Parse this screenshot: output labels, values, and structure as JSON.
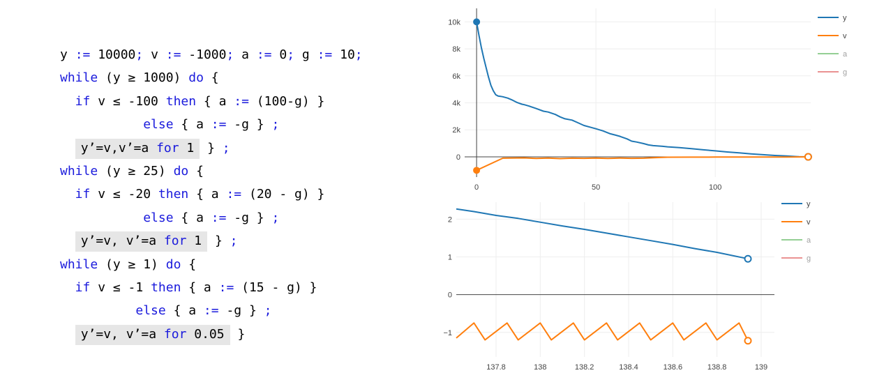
{
  "program": [
    [
      {
        "t": "y "
      },
      {
        "t": ":=",
        "k": 1
      },
      {
        "t": " 10000"
      },
      {
        "t": ";",
        "k": 1
      },
      {
        "t": " v "
      },
      {
        "t": ":=",
        "k": 1
      },
      {
        "t": " -1000"
      },
      {
        "t": ";",
        "k": 1
      },
      {
        "t": " a "
      },
      {
        "t": ":=",
        "k": 1
      },
      {
        "t": " 0"
      },
      {
        "t": ";",
        "k": 1
      },
      {
        "t": " g "
      },
      {
        "t": ":=",
        "k": 1
      },
      {
        "t": " 10"
      },
      {
        "t": ";",
        "k": 1
      }
    ],
    [
      {
        "t": "while",
        "k": 1
      },
      {
        "t": " (y ≥ 1000) "
      },
      {
        "t": "do",
        "k": 1
      },
      {
        "t": " {"
      }
    ],
    [
      {
        "t": "  if",
        "k": 1
      },
      {
        "t": " v ≤ -100 "
      },
      {
        "t": "then",
        "k": 1
      },
      {
        "t": " { a "
      },
      {
        "t": ":=",
        "k": 1
      },
      {
        "t": " (100-g) }"
      }
    ],
    [
      {
        "t": "           "
      },
      {
        "t": "else",
        "k": 1
      },
      {
        "t": " { a "
      },
      {
        "t": ":=",
        "k": 1
      },
      {
        "t": " -g } "
      },
      {
        "t": ";",
        "k": 1
      }
    ],
    [
      {
        "t": "  "
      },
      {
        "t": "y’=v,v’=a ",
        "h": 1
      },
      {
        "t": "for",
        "k": 1,
        "h": 1
      },
      {
        "t": " 1",
        "h": 1
      },
      {
        "t": " } "
      },
      {
        "t": ";",
        "k": 1
      }
    ],
    [
      {
        "t": "while",
        "k": 1
      },
      {
        "t": " (y ≥ 25) "
      },
      {
        "t": "do",
        "k": 1
      },
      {
        "t": " {"
      }
    ],
    [
      {
        "t": "  if",
        "k": 1
      },
      {
        "t": " v ≤ -20 "
      },
      {
        "t": "then",
        "k": 1
      },
      {
        "t": " { a "
      },
      {
        "t": ":=",
        "k": 1
      },
      {
        "t": " (20 - g) }"
      }
    ],
    [
      {
        "t": "           "
      },
      {
        "t": "else",
        "k": 1
      },
      {
        "t": " { a "
      },
      {
        "t": ":=",
        "k": 1
      },
      {
        "t": " -g } "
      },
      {
        "t": ";",
        "k": 1
      }
    ],
    [
      {
        "t": "  "
      },
      {
        "t": "y’=v, v’=a ",
        "h": 1
      },
      {
        "t": "for",
        "k": 1,
        "h": 1
      },
      {
        "t": " 1",
        "h": 1
      },
      {
        "t": " } "
      },
      {
        "t": ";",
        "k": 1
      }
    ],
    [
      {
        "t": "while",
        "k": 1
      },
      {
        "t": " (y ≥ 1) "
      },
      {
        "t": "do",
        "k": 1
      },
      {
        "t": " {"
      }
    ],
    [
      {
        "t": "  if",
        "k": 1
      },
      {
        "t": " v ≤ -1 "
      },
      {
        "t": "then",
        "k": 1
      },
      {
        "t": " { a "
      },
      {
        "t": ":=",
        "k": 1
      },
      {
        "t": " (15 - g) }"
      }
    ],
    [
      {
        "t": "          "
      },
      {
        "t": "else",
        "k": 1
      },
      {
        "t": " { a "
      },
      {
        "t": ":=",
        "k": 1
      },
      {
        "t": " -g } "
      },
      {
        "t": ";",
        "k": 1
      }
    ],
    [
      {
        "t": "  "
      },
      {
        "t": "y’=v, v’=a ",
        "h": 1
      },
      {
        "t": "for",
        "k": 1,
        "h": 1
      },
      {
        "t": " 0.05",
        "h": 1
      },
      {
        "t": " }"
      }
    ]
  ],
  "colors": {
    "y": "#1f77b4",
    "v": "#ff7f0e",
    "a": "#2ca02c",
    "g": "#d62728",
    "keyword": "#1a1adc",
    "highlight": "#e6e6e6"
  },
  "chart_data": [
    {
      "type": "line",
      "xlim": [
        -5,
        140
      ],
      "ylim": [
        -1500,
        11000
      ],
      "x_ticks": [
        0,
        50,
        100
      ],
      "x_tick_labels": [
        "0",
        "50",
        "100"
      ],
      "y_ticks": [
        0,
        2000,
        4000,
        6000,
        8000,
        10000
      ],
      "y_tick_labels": [
        "0",
        "2k",
        "4k",
        "6k",
        "8k",
        "10k"
      ],
      "grid": true,
      "legend": "top-right",
      "legend_entries": [
        {
          "name": "y",
          "visible": true
        },
        {
          "name": "v",
          "visible": true
        },
        {
          "name": "a",
          "visible": false
        },
        {
          "name": "g",
          "visible": false
        }
      ],
      "series": [
        {
          "name": "y",
          "color": "#1f77b4",
          "x": [
            0,
            1,
            2,
            3,
            4,
            5,
            6,
            7,
            8,
            9,
            10,
            11,
            13,
            15,
            17,
            19,
            20,
            22,
            25,
            28,
            30,
            33,
            35,
            37,
            40,
            42,
            45,
            48,
            50,
            53,
            56,
            58,
            60,
            63,
            65,
            67,
            70,
            72,
            74,
            75,
            78,
            80,
            85,
            90,
            95,
            100,
            105,
            110,
            115,
            120,
            125,
            130,
            135,
            138.94
          ],
          "y": [
            10000,
            9000,
            8100,
            7300,
            6600,
            5900,
            5300,
            4900,
            4600,
            4500,
            4480,
            4450,
            4350,
            4200,
            4020,
            3900,
            3860,
            3760,
            3580,
            3380,
            3320,
            3140,
            2960,
            2820,
            2720,
            2560,
            2320,
            2180,
            2080,
            1920,
            1710,
            1620,
            1520,
            1330,
            1160,
            1100,
            980,
            880,
            830,
            820,
            780,
            740,
            680,
            600,
            520,
            440,
            360,
            290,
            220,
            160,
            100,
            60,
            10,
            0.95
          ],
          "start_marker": "filled",
          "end_marker": "open"
        },
        {
          "name": "v",
          "color": "#ff7f0e",
          "x": [
            0,
            11,
            20,
            25,
            30,
            35,
            40,
            45,
            50,
            55,
            60,
            65,
            70,
            75,
            80,
            90,
            100,
            110,
            120,
            130,
            138.94
          ],
          "y": [
            -1000,
            -100,
            -80,
            -120,
            -90,
            -130,
            -100,
            -110,
            -95,
            -120,
            -90,
            -110,
            -100,
            -60,
            -30,
            -25,
            -20,
            -18,
            -15,
            -10,
            -1.2
          ],
          "start_marker": "filled",
          "end_marker": "open"
        }
      ]
    },
    {
      "type": "line",
      "xlim": [
        137.62,
        139.06
      ],
      "ylim": [
        -1.65,
        2.45
      ],
      "x_ticks": [
        137.8,
        138,
        138.2,
        138.4,
        138.6,
        138.8,
        139
      ],
      "x_tick_labels": [
        "137.8",
        "138",
        "138.2",
        "138.4",
        "138.6",
        "138.8",
        "139"
      ],
      "y_ticks": [
        -1,
        0,
        1,
        2
      ],
      "y_tick_labels": [
        "−1",
        "0",
        "1",
        "2"
      ],
      "grid": true,
      "legend": "top-right",
      "legend_entries": [
        {
          "name": "y",
          "visible": true
        },
        {
          "name": "v",
          "visible": true
        },
        {
          "name": "a",
          "visible": false
        },
        {
          "name": "g",
          "visible": false
        }
      ],
      "series": [
        {
          "name": "y",
          "color": "#1f77b4",
          "x": [
            137.62,
            137.7,
            137.8,
            137.9,
            138,
            138.1,
            138.2,
            138.3,
            138.4,
            138.5,
            138.6,
            138.7,
            138.8,
            138.94
          ],
          "y": [
            2.27,
            2.2,
            2.1,
            2.02,
            1.92,
            1.82,
            1.73,
            1.63,
            1.53,
            1.43,
            1.33,
            1.22,
            1.12,
            0.95
          ],
          "end_marker": "open"
        },
        {
          "name": "v",
          "color": "#ff7f0e",
          "x": [
            137.62,
            137.7,
            137.75,
            137.85,
            137.9,
            138,
            138.05,
            138.15,
            138.2,
            138.3,
            138.35,
            138.45,
            138.5,
            138.6,
            138.65,
            138.75,
            138.8,
            138.9,
            138.94
          ],
          "y": [
            -1.15,
            -0.75,
            -1.2,
            -0.75,
            -1.2,
            -0.75,
            -1.2,
            -0.75,
            -1.2,
            -0.75,
            -1.2,
            -0.75,
            -1.2,
            -0.75,
            -1.2,
            -0.75,
            -1.2,
            -0.75,
            -1.22
          ],
          "end_marker": "open"
        }
      ]
    }
  ]
}
